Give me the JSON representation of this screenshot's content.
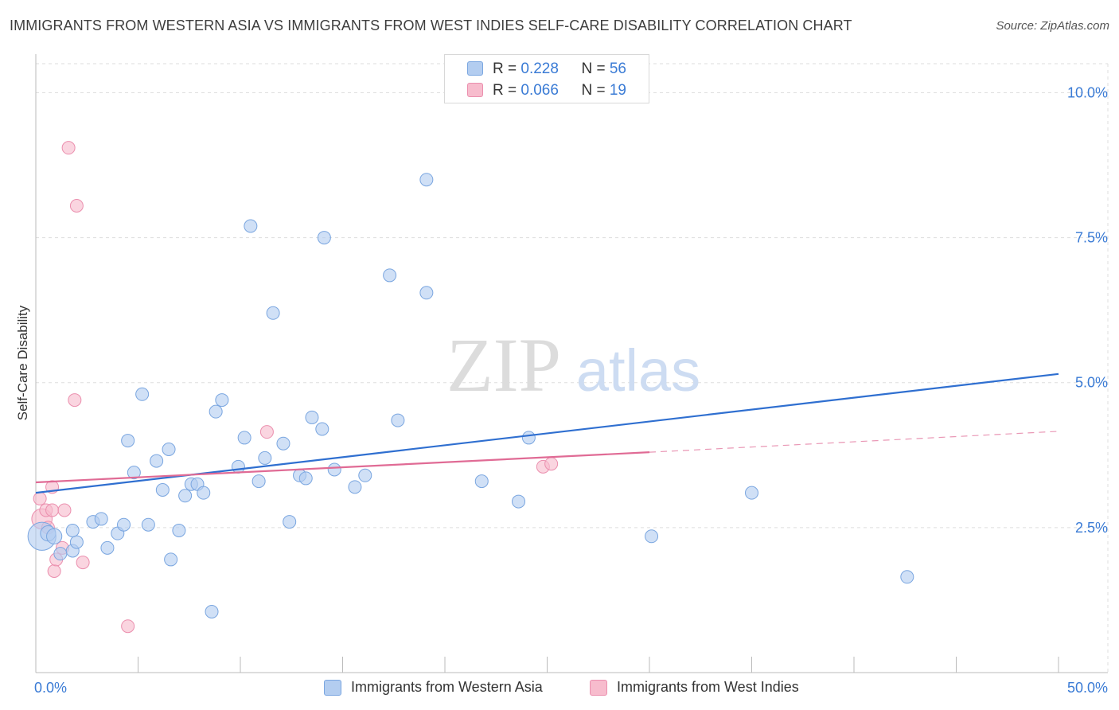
{
  "title": "IMMIGRANTS FROM WESTERN ASIA VS IMMIGRANTS FROM WEST INDIES SELF-CARE DISABILITY CORRELATION CHART",
  "source": "Source: ZipAtlas.com",
  "watermark": {
    "zip": "ZIP",
    "atlas": "atlas"
  },
  "legend": {
    "rows": [
      {
        "r_label": "R = ",
        "r_value": "0.228",
        "n_label": "N = ",
        "n_value": "56"
      },
      {
        "r_label": "R = ",
        "r_value": "0.066",
        "n_label": "N = ",
        "n_value": "19"
      }
    ]
  },
  "colors": {
    "blue_fill": "#b3cdf0",
    "blue_stroke": "#7aa6e0",
    "blue_line": "#2f6fd0",
    "pink_fill": "#f7bccd",
    "pink_stroke": "#eb8fae",
    "pink_line": "#e06b95",
    "grid": "#dddddd",
    "tick_label": "#3a7bd5"
  },
  "chart_data": {
    "type": "scatter",
    "title": "IMMIGRANTS FROM WESTERN ASIA VS IMMIGRANTS FROM WEST INDIES SELF-CARE DISABILITY CORRELATION CHART",
    "xlabel": "",
    "ylabel": "Self-Care Disability",
    "xlim": [
      0,
      50
    ],
    "ylim": [
      0,
      10.5
    ],
    "x_tick_labels": [
      {
        "value": 0,
        "label": "0.0%"
      },
      {
        "value": 50,
        "label": "50.0%"
      }
    ],
    "x_minor_ticks": [
      0,
      5,
      10,
      15,
      20,
      25,
      30,
      35,
      40,
      45,
      50
    ],
    "y_ticks": [
      {
        "value": 2.5,
        "label": "2.5%"
      },
      {
        "value": 5.0,
        "label": "5.0%"
      },
      {
        "value": 7.5,
        "label": "7.5%"
      },
      {
        "value": 10.0,
        "label": "10.0%"
      }
    ],
    "legend_placement": "top-center",
    "series": [
      {
        "name": "Immigrants from Western Asia",
        "color": "blue",
        "r": 0.228,
        "n": 56,
        "trend": {
          "x": [
            0,
            50
          ],
          "y": [
            3.1,
            5.15
          ]
        },
        "points": [
          [
            0.3,
            2.35,
            2.2
          ],
          [
            0.6,
            2.4,
            1.2
          ],
          [
            0.9,
            2.35,
            1.2
          ],
          [
            1.2,
            2.05,
            1
          ],
          [
            1.8,
            2.1,
            1
          ],
          [
            2.0,
            2.25,
            1
          ],
          [
            1.8,
            2.45,
            1
          ],
          [
            2.8,
            2.6,
            1
          ],
          [
            3.5,
            2.15,
            1
          ],
          [
            3.2,
            2.65,
            1
          ],
          [
            4.0,
            2.4,
            1
          ],
          [
            4.3,
            2.55,
            1
          ],
          [
            4.5,
            4.0,
            1
          ],
          [
            4.8,
            3.45,
            1
          ],
          [
            5.2,
            4.8,
            1
          ],
          [
            5.5,
            2.55,
            1
          ],
          [
            5.9,
            3.65,
            1
          ],
          [
            6.2,
            3.15,
            1
          ],
          [
            6.5,
            3.85,
            1
          ],
          [
            6.6,
            1.95,
            1
          ],
          [
            7.0,
            2.45,
            1
          ],
          [
            7.3,
            3.05,
            1
          ],
          [
            7.6,
            3.25,
            1
          ],
          [
            7.9,
            3.25,
            1
          ],
          [
            8.2,
            3.1,
            1
          ],
          [
            8.6,
            1.05,
            1
          ],
          [
            8.8,
            4.5,
            1
          ],
          [
            9.1,
            4.7,
            1
          ],
          [
            9.9,
            3.55,
            1
          ],
          [
            10.2,
            4.05,
            1
          ],
          [
            10.5,
            7.7,
            1
          ],
          [
            10.9,
            3.3,
            1
          ],
          [
            11.2,
            3.7,
            1
          ],
          [
            11.6,
            6.2,
            1
          ],
          [
            12.1,
            3.95,
            1
          ],
          [
            12.4,
            2.6,
            1
          ],
          [
            12.9,
            3.4,
            1
          ],
          [
            13.2,
            3.35,
            1
          ],
          [
            13.5,
            4.4,
            1
          ],
          [
            14.0,
            4.2,
            1
          ],
          [
            14.1,
            7.5,
            1
          ],
          [
            14.6,
            3.5,
            1
          ],
          [
            15.6,
            3.2,
            1
          ],
          [
            16.1,
            3.4,
            1
          ],
          [
            17.3,
            6.85,
            1
          ],
          [
            17.7,
            4.35,
            1
          ],
          [
            19.1,
            8.5,
            1
          ],
          [
            19.1,
            6.55,
            1
          ],
          [
            21.8,
            3.3,
            1
          ],
          [
            23.6,
            2.95,
            1
          ],
          [
            24.1,
            4.05,
            1
          ],
          [
            30.1,
            2.35,
            1
          ],
          [
            35.0,
            3.1,
            1
          ],
          [
            42.6,
            1.65,
            1
          ]
        ]
      },
      {
        "name": "Immigrants from West Indies",
        "color": "pink",
        "r": 0.066,
        "n": 19,
        "trend": {
          "x": [
            0,
            30
          ],
          "y": [
            3.28,
            3.8
          ]
        },
        "trend_extension": {
          "x": [
            30,
            50
          ],
          "y": [
            3.8,
            4.16
          ]
        },
        "points": [
          [
            0.2,
            3.0,
            1
          ],
          [
            0.3,
            2.65,
            1.6
          ],
          [
            0.5,
            2.8,
            1
          ],
          [
            0.6,
            2.5,
            1
          ],
          [
            0.8,
            3.2,
            1
          ],
          [
            0.8,
            2.8,
            1
          ],
          [
            0.9,
            1.75,
            1
          ],
          [
            1.0,
            1.95,
            1
          ],
          [
            1.3,
            2.15,
            1
          ],
          [
            1.4,
            2.8,
            1
          ],
          [
            1.6,
            9.05,
            1
          ],
          [
            1.9,
            4.7,
            1
          ],
          [
            2.0,
            8.05,
            1
          ],
          [
            2.3,
            1.9,
            1
          ],
          [
            4.5,
            0.8,
            1
          ],
          [
            11.3,
            4.15,
            1
          ],
          [
            24.8,
            3.55,
            1
          ],
          [
            25.2,
            3.6,
            1
          ]
        ]
      }
    ]
  }
}
